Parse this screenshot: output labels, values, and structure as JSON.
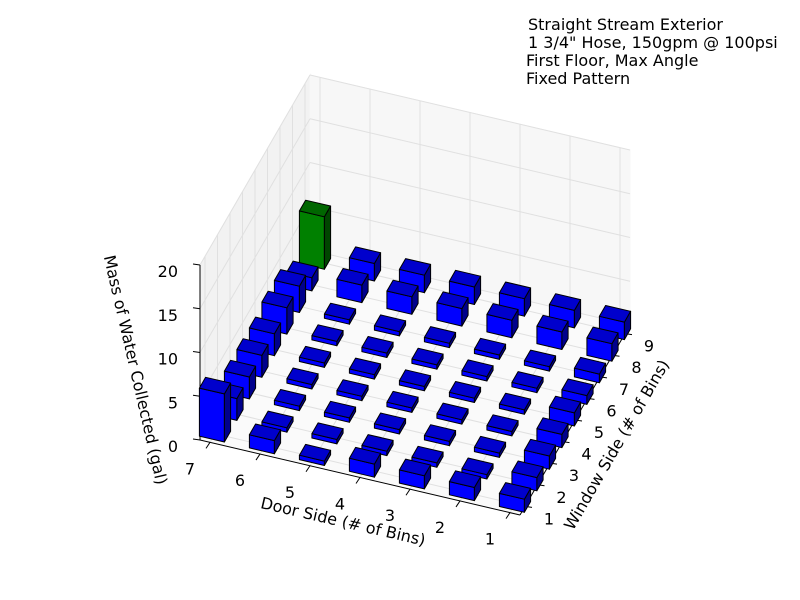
{
  "chart_data": {
    "type": "bar3d",
    "title_lines": [
      "Straight Stream Exterior",
      "1 3/4\" Hose, 150gpm @ 100psi",
      "First Floor, Max Angle",
      "Fixed Pattern"
    ],
    "xlabel": "Door Side (# of Bins)",
    "ylabel": "Window Side (# of Bins)",
    "zlabel": "Mass of Water Collected (gal)",
    "xticks": [
      1,
      2,
      3,
      4,
      5,
      6,
      7
    ],
    "xlim": [
      0.8,
      7.2
    ],
    "yticks": [
      1,
      2,
      3,
      4,
      5,
      6,
      7,
      8,
      9
    ],
    "ylim": [
      0.6,
      9.4
    ],
    "zticks": [
      0,
      5,
      10,
      15,
      20
    ],
    "zlim": [
      0,
      20
    ],
    "color": "#0000ff",
    "max_color": "#008000",
    "grid": true,
    "values": [
      [
        1.5,
        1.5,
        1.5,
        1.5,
        0.5,
        1.5,
        5.5
      ],
      [
        1.5,
        0.5,
        0.5,
        0.5,
        0.5,
        0.5,
        2.5
      ],
      [
        1.5,
        0.5,
        0.5,
        0.5,
        0.5,
        0.5,
        2.5
      ],
      [
        1.5,
        0.5,
        0.5,
        0.5,
        0.5,
        0.5,
        2.5
      ],
      [
        1.5,
        0.5,
        0.5,
        0.5,
        0.5,
        0.5,
        2.5
      ],
      [
        1,
        0.5,
        0.5,
        0.5,
        0.5,
        0.5,
        3
      ],
      [
        1,
        0.5,
        0.5,
        0.5,
        0.5,
        0.5,
        3
      ],
      [
        2,
        2,
        2,
        2,
        2,
        2,
        1.5
      ],
      [
        2,
        2,
        2,
        2,
        2,
        2,
        6
      ]
    ]
  }
}
